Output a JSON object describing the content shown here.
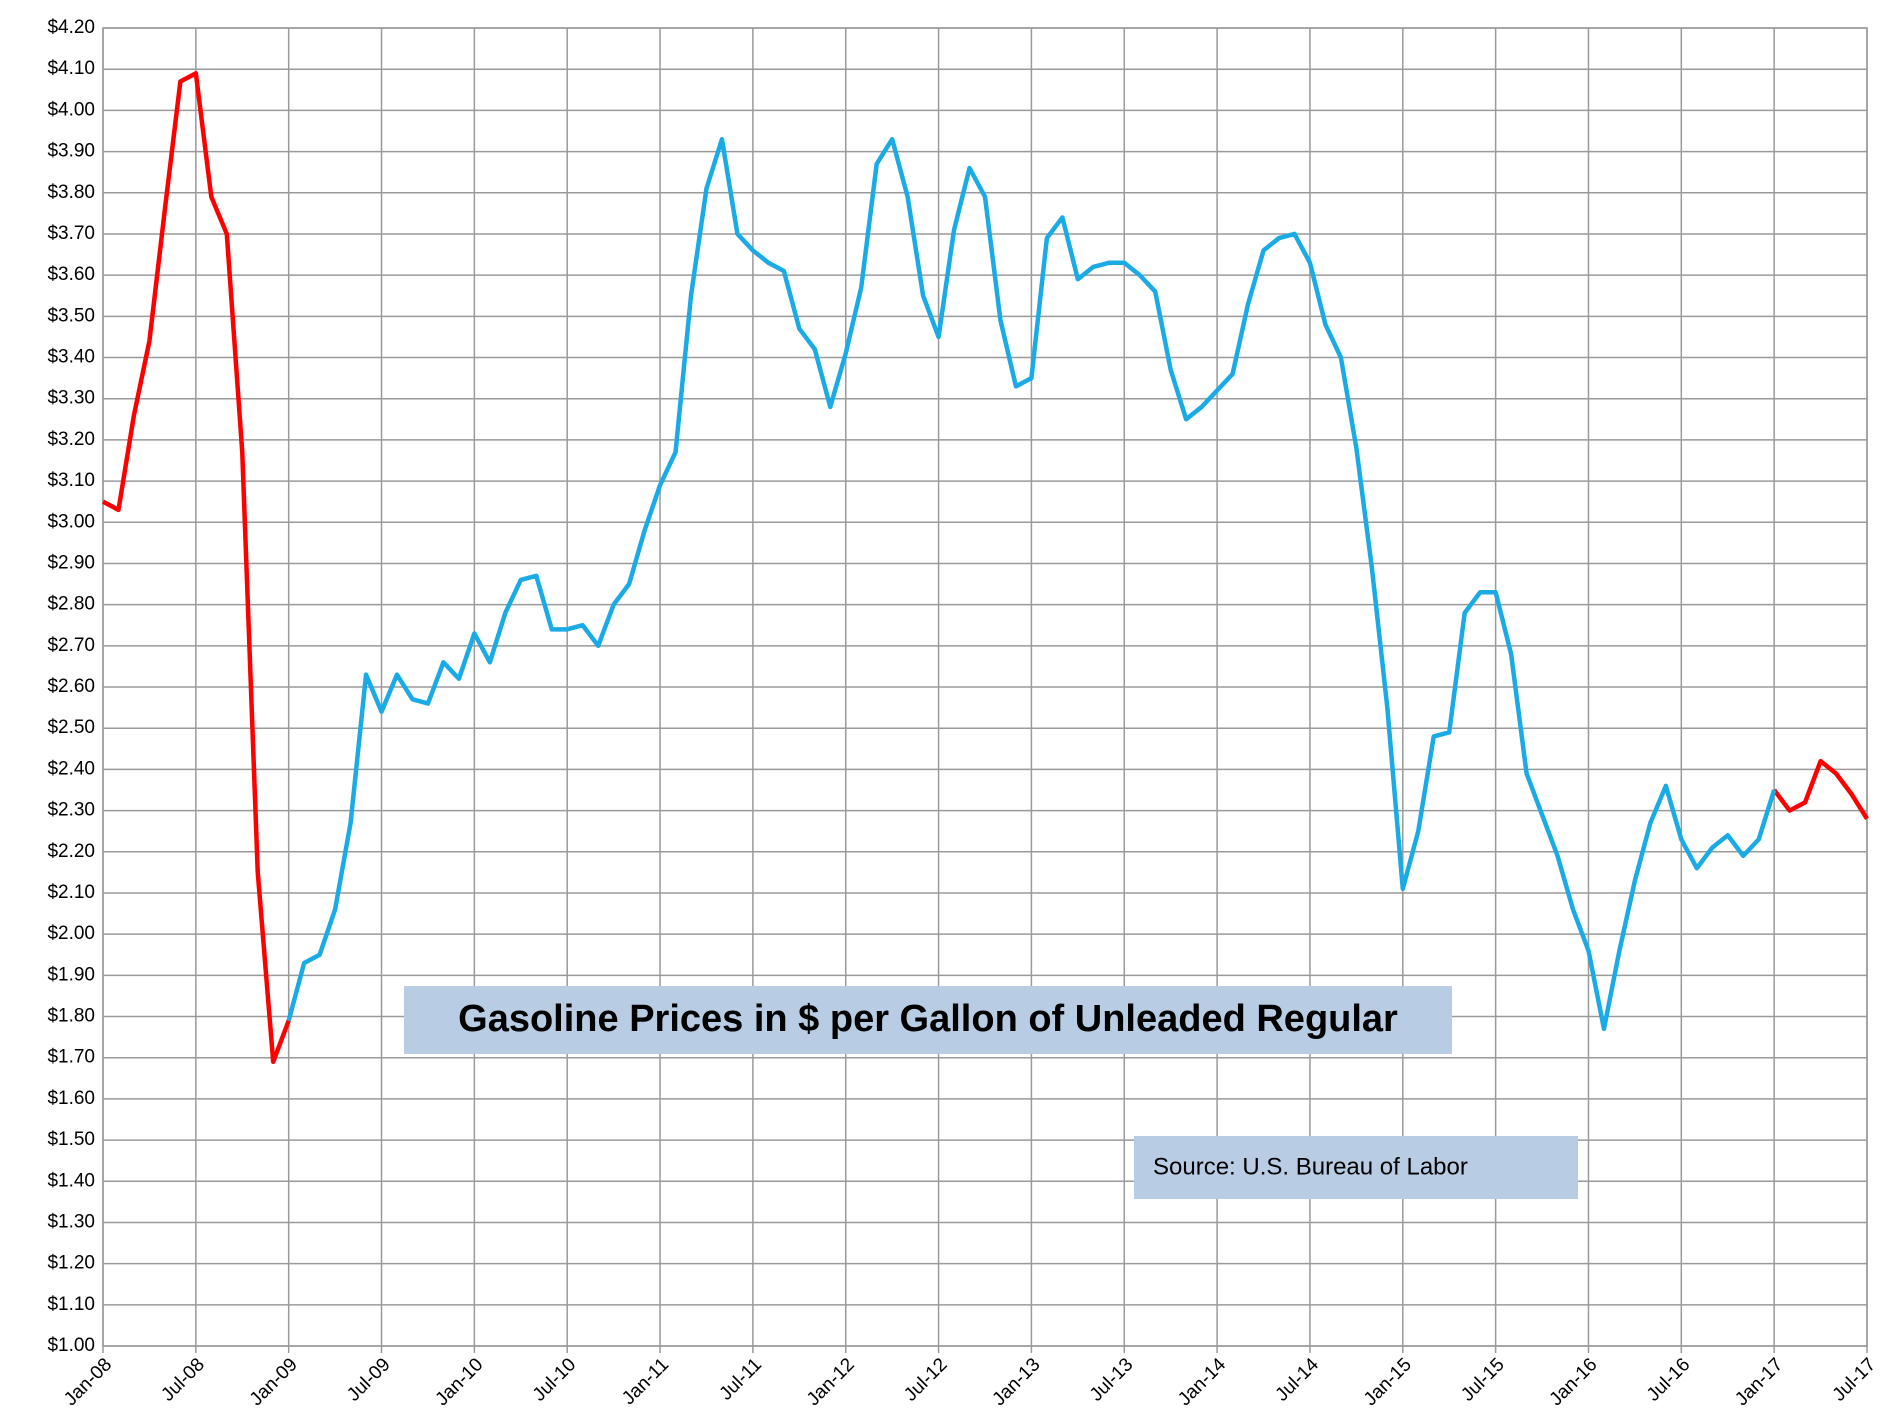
{
  "chart_data": {
    "type": "line",
    "title": "Gasoline Prices  in $ per Gallon of Unleaded Regular",
    "annotations": [
      "Source:  U.S. Bureau of Labor"
    ],
    "categories": [
      "Jan-08",
      null,
      null,
      null,
      null,
      null,
      "Jul-08",
      null,
      null,
      null,
      null,
      null,
      "Jan-09",
      null,
      null,
      null,
      null,
      null,
      "Jul-09",
      null,
      null,
      null,
      null,
      null,
      "Jan-10",
      null,
      null,
      null,
      null,
      null,
      "Jul-10",
      null,
      null,
      null,
      null,
      null,
      "Jan-11",
      null,
      null,
      null,
      null,
      null,
      "Jul-11",
      null,
      null,
      null,
      null,
      null,
      "Jan-12",
      null,
      null,
      null,
      null,
      null,
      "Jul-12",
      null,
      null,
      null,
      null,
      null,
      "Jan-13",
      null,
      null,
      null,
      null,
      null,
      "Jul-13",
      null,
      null,
      null,
      null,
      null,
      "Jan-14",
      null,
      null,
      null,
      null,
      null,
      "Jul-14",
      null,
      null,
      null,
      null,
      null,
      "Jan-15",
      null,
      null,
      null,
      null,
      null,
      "Jul-15",
      null,
      null,
      null,
      null,
      null,
      "Jan-16",
      null,
      null,
      null,
      null,
      null,
      "Jul-16",
      null,
      null,
      null,
      null,
      null,
      "Jan-17",
      null,
      null,
      null,
      null,
      null,
      "Jul-17"
    ],
    "series": [
      {
        "color": "#ff0000",
        "values": [
          3.05,
          3.03,
          3.26,
          3.44,
          3.76,
          4.07,
          4.09,
          3.79,
          3.7,
          3.17,
          2.15,
          1.69,
          1.79,
          null,
          null,
          null,
          null,
          null,
          null,
          null,
          null,
          null,
          null,
          null,
          null,
          null,
          null,
          null,
          null,
          null,
          null,
          null,
          null,
          null,
          null,
          null,
          null,
          null,
          null,
          null,
          null,
          null,
          null,
          null,
          null,
          null,
          null,
          null,
          null,
          null,
          null,
          null,
          null,
          null,
          null,
          null,
          null,
          null,
          null,
          null,
          null,
          null,
          null,
          null,
          null,
          null,
          null,
          null,
          null,
          null,
          null,
          null,
          null,
          null,
          null,
          null,
          null,
          null,
          null,
          null,
          null,
          null,
          null,
          null,
          null,
          null,
          null,
          null,
          null,
          null,
          null,
          null,
          null,
          null,
          null,
          null,
          null,
          null,
          null,
          null,
          null,
          null,
          null,
          null,
          null,
          null,
          null,
          null,
          2.35,
          2.3,
          2.32,
          2.42,
          2.39,
          2.34,
          2.28
        ]
      },
      {
        "color": "#1aabe6",
        "values": [
          null,
          null,
          null,
          null,
          null,
          null,
          null,
          null,
          null,
          null,
          null,
          null,
          1.79,
          1.93,
          1.95,
          2.06,
          2.27,
          2.63,
          2.54,
          2.63,
          2.57,
          2.56,
          2.66,
          2.62,
          2.73,
          2.66,
          2.78,
          2.86,
          2.87,
          2.74,
          2.74,
          2.75,
          2.7,
          2.8,
          2.85,
          2.98,
          3.09,
          3.17,
          3.55,
          3.81,
          3.93,
          3.7,
          3.66,
          3.63,
          3.61,
          3.47,
          3.42,
          3.28,
          3.41,
          3.57,
          3.87,
          3.93,
          3.79,
          3.55,
          3.45,
          3.71,
          3.86,
          3.79,
          3.49,
          3.33,
          3.35,
          3.69,
          3.74,
          3.59,
          3.62,
          3.63,
          3.63,
          3.6,
          3.56,
          3.37,
          3.25,
          3.28,
          3.32,
          3.36,
          3.53,
          3.66,
          3.69,
          3.7,
          3.63,
          3.48,
          3.4,
          3.18,
          2.89,
          2.55,
          2.11,
          2.25,
          2.48,
          2.49,
          2.78,
          2.83,
          2.83,
          2.68,
          2.39,
          2.29,
          2.19,
          2.06,
          1.96,
          1.77,
          1.96,
          2.13,
          2.27,
          2.36,
          2.23,
          2.16,
          2.21,
          2.24,
          2.19,
          2.23,
          2.35,
          null,
          null,
          null,
          null,
          null,
          null
        ]
      }
    ],
    "ylim": [
      1.0,
      4.2
    ],
    "yticks": [
      {
        "value": 1.0,
        "label": "$1.00"
      },
      {
        "value": 1.1,
        "label": "$1.10"
      },
      {
        "value": 1.2,
        "label": "$1.20"
      },
      {
        "value": 1.3,
        "label": "$1.30"
      },
      {
        "value": 1.4,
        "label": "$1.40"
      },
      {
        "value": 1.5,
        "label": "$1.50"
      },
      {
        "value": 1.6,
        "label": "$1.60"
      },
      {
        "value": 1.7,
        "label": "$1.70"
      },
      {
        "value": 1.8,
        "label": "$1.80"
      },
      {
        "value": 1.9,
        "label": "$1.90"
      },
      {
        "value": 2.0,
        "label": "$2.00"
      },
      {
        "value": 2.1,
        "label": "$2.10"
      },
      {
        "value": 2.2,
        "label": "$2.20"
      },
      {
        "value": 2.3,
        "label": "$2.30"
      },
      {
        "value": 2.4,
        "label": "$2.40"
      },
      {
        "value": 2.5,
        "label": "$2.50"
      },
      {
        "value": 2.6,
        "label": "$2.60"
      },
      {
        "value": 2.7,
        "label": "$2.70"
      },
      {
        "value": 2.8,
        "label": "$2.80"
      },
      {
        "value": 2.9,
        "label": "$2.90"
      },
      {
        "value": 3.0,
        "label": "$3.00"
      },
      {
        "value": 3.1,
        "label": "$3.10"
      },
      {
        "value": 3.2,
        "label": "$3.20"
      },
      {
        "value": 3.3,
        "label": "$3.30"
      },
      {
        "value": 3.4,
        "label": "$3.40"
      },
      {
        "value": 3.5,
        "label": "$3.50"
      },
      {
        "value": 3.6,
        "label": "$3.60"
      },
      {
        "value": 3.7,
        "label": "$3.70"
      },
      {
        "value": 3.8,
        "label": "$3.80"
      },
      {
        "value": 3.9,
        "label": "$3.90"
      },
      {
        "value": 4.0,
        "label": "$4.00"
      },
      {
        "value": 4.1,
        "label": "$4.10"
      },
      {
        "value": 4.2,
        "label": "$4.20"
      }
    ],
    "grid": true
  }
}
